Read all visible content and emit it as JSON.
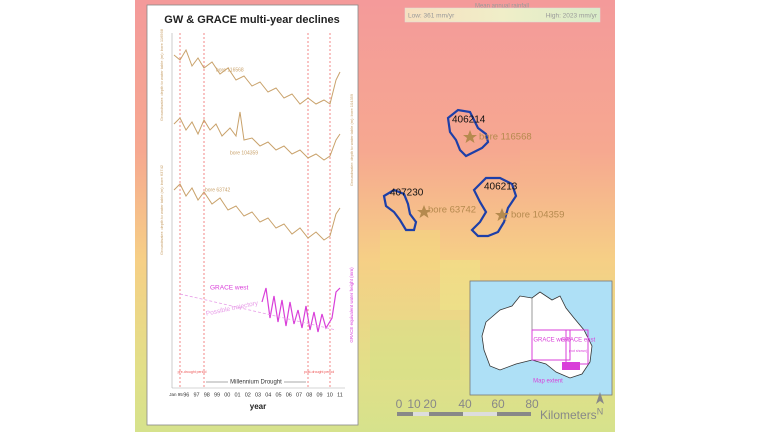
{
  "title": "GW & GRACE multi-year declines",
  "legend": {
    "title": "Mean annual rainfall",
    "low": "Low: 361 mm/yr",
    "high": "High: 2023 mm/yr"
  },
  "sites": [
    {
      "id": "406214",
      "bore": "bore 116568"
    },
    {
      "id": "407230",
      "bore": "bore 63742"
    },
    {
      "id": "406213",
      "bore": "bore 104359"
    }
  ],
  "panel": {
    "series_labels": [
      "bore 116568",
      "bore 104359",
      "bore 63742"
    ],
    "y_axis_labels": [
      "Groundwater: depth to water table (m): bore 116568",
      "Groundwater: depth to water table (m): bore 104359",
      "Groundwater: depth to water table (m): bore 63742"
    ],
    "grace_label": "GRACE west",
    "grace_axis": "GRACE equivalent water height (mm)",
    "trajectory": "Possible trajectory",
    "drought": "Millennium Drought",
    "pre_drought": "pre-drought period",
    "post_drought": "post-drought period",
    "x_label": "year",
    "years": [
      "Jan 95",
      "96",
      "97",
      "98",
      "99",
      "00",
      "01",
      "02",
      "03",
      "04",
      "05",
      "06",
      "07",
      "08",
      "09",
      "10",
      "11"
    ]
  },
  "inset": {
    "west": "GRACE west",
    "east": "GRACE east",
    "east_note": "(not shown)",
    "extent": "Map extent"
  },
  "scale": {
    "ticks": [
      "0",
      "10",
      "20",
      "40",
      "60",
      "80"
    ],
    "unit": "Kilometers"
  },
  "north": "N"
}
